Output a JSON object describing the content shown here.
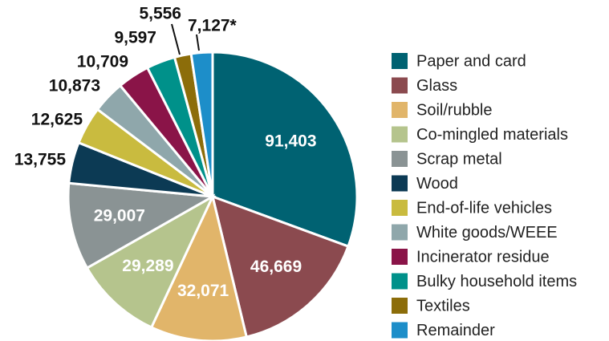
{
  "chart_data": {
    "type": "pie",
    "categories": [
      "Paper and card",
      "Glass",
      "Soil/rubble",
      "Co-mingled materials",
      "Scrap metal",
      "Wood",
      "End-of-life vehicles",
      "White goods/WEEE",
      "Incinerator residue",
      "Bulky household items",
      "Textiles",
      "Remainder"
    ],
    "values": [
      91403,
      46669,
      32071,
      29289,
      29007,
      13755,
      12625,
      10873,
      10709,
      9597,
      5556,
      7127
    ],
    "value_labels": [
      "91,403",
      "46,669",
      "32,071",
      "29,289",
      "29,007",
      "13,755",
      "12,625",
      "10,873",
      "10,709",
      "9,597",
      "5,556",
      "7,127*"
    ],
    "colors": [
      "#006272",
      "#8b4a4f",
      "#e1b56a",
      "#b5c48d",
      "#8a9394",
      "#0c3a54",
      "#c9bb3f",
      "#8fa7ab",
      "#8a1448",
      "#00918a",
      "#8c6d0a",
      "#1d8ec9"
    ],
    "legend": "right"
  }
}
